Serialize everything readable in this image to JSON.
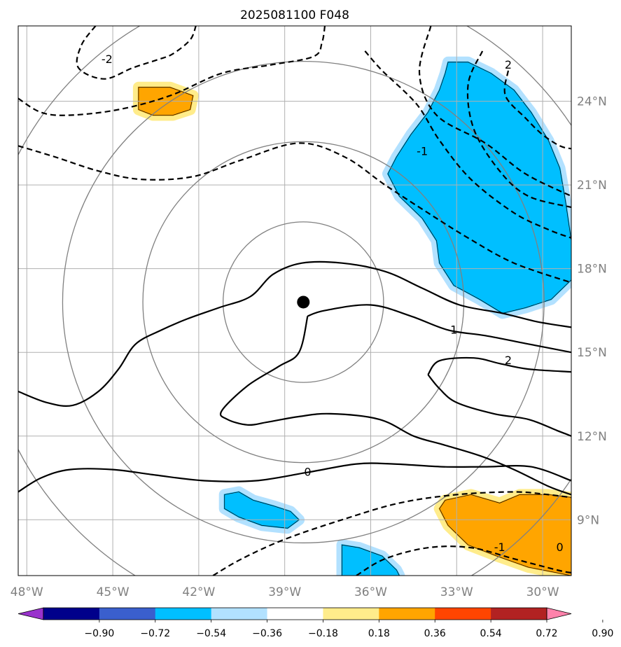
{
  "chart_data": {
    "type": "map-contour",
    "title": "2025081100 F048",
    "projection": "lat-lon",
    "xlim": [
      -48.3,
      -29.0
    ],
    "ylim": [
      7.0,
      26.7
    ],
    "x_ticks": [
      {
        "value": -48,
        "label": "48°W"
      },
      {
        "value": -45,
        "label": "45°W"
      },
      {
        "value": -42,
        "label": "42°W"
      },
      {
        "value": -39,
        "label": "39°W"
      },
      {
        "value": -36,
        "label": "36°W"
      },
      {
        "value": -33,
        "label": "33°W"
      },
      {
        "value": -30,
        "label": "30°W"
      }
    ],
    "y_ticks": [
      {
        "value": 9,
        "label": "9°N"
      },
      {
        "value": 12,
        "label": "12°N"
      },
      {
        "value": 15,
        "label": "15°N"
      },
      {
        "value": 18,
        "label": "18°N"
      },
      {
        "value": 21,
        "label": "21°N"
      },
      {
        "value": 24,
        "label": "24°N"
      }
    ],
    "grid": true,
    "center_marker": {
      "lon": -38.35,
      "lat": 16.8
    },
    "range_rings_deg": [
      2.8,
      5.6,
      8.4,
      11.2
    ],
    "colorbar": {
      "orientation": "horizontal",
      "position": "bottom",
      "extend": "both",
      "bounds": [
        -0.9,
        -0.72,
        -0.54,
        -0.36,
        -0.18,
        0.18,
        0.36,
        0.54,
        0.72,
        0.9
      ],
      "tick_labels": [
        "−0.90",
        "−0.72",
        "−0.54",
        "−0.36",
        "−0.18",
        "0.18",
        "0.36",
        "0.54",
        "0.72",
        "0.90"
      ],
      "colors": [
        "#9932CC",
        "#00008B",
        "#3A5FCD",
        "#00BFFF",
        "#B2E1FF",
        "#FFFFFF",
        "#FFEC8B",
        "#FFA500",
        "#FF4500",
        "#B22222",
        "#FF82AB"
      ]
    },
    "contour_labels": [
      "-2",
      "2",
      "-1",
      "1",
      "2",
      "0",
      "-1",
      "0"
    ],
    "colors": {
      "neg_light": "#B2E1FF",
      "neg_mid": "#00BFFF",
      "pos_light": "#FFEC8B",
      "pos_mid": "#FFA500",
      "contour": "#000000",
      "grid": "#B0B0B0",
      "rings": "#808080"
    },
    "fill_regions": [
      {
        "level": "neg_mid",
        "polygon": [
          [
            -33.3,
            25.4
          ],
          [
            -32.6,
            25.4
          ],
          [
            -31.8,
            25.0
          ],
          [
            -31.0,
            24.4
          ],
          [
            -30.4,
            23.6
          ],
          [
            -29.8,
            22.6
          ],
          [
            -29.4,
            21.6
          ],
          [
            -29.2,
            20.4
          ],
          [
            -29.0,
            19.0
          ],
          [
            -29.0,
            17.6
          ],
          [
            -29.7,
            16.9
          ],
          [
            -30.6,
            16.6
          ],
          [
            -31.4,
            16.4
          ],
          [
            -32.2,
            16.9
          ],
          [
            -33.1,
            17.4
          ],
          [
            -33.6,
            18.2
          ],
          [
            -33.7,
            19.0
          ],
          [
            -34.2,
            19.8
          ],
          [
            -35.0,
            20.6
          ],
          [
            -35.4,
            21.4
          ],
          [
            -35.1,
            22.0
          ],
          [
            -34.6,
            22.8
          ],
          [
            -34.0,
            23.6
          ],
          [
            -33.6,
            24.4
          ],
          [
            -33.4,
            25.0
          ]
        ]
      },
      {
        "level": "neg_mid",
        "polygon": [
          [
            -41.1,
            9.9
          ],
          [
            -40.6,
            10.0
          ],
          [
            -40.1,
            9.7
          ],
          [
            -39.4,
            9.5
          ],
          [
            -38.8,
            9.3
          ],
          [
            -38.5,
            9.0
          ],
          [
            -38.9,
            8.7
          ],
          [
            -39.8,
            8.8
          ],
          [
            -40.6,
            9.1
          ],
          [
            -41.1,
            9.4
          ]
        ]
      },
      {
        "level": "neg_mid",
        "polygon": [
          [
            -37.0,
            8.1
          ],
          [
            -36.4,
            8.0
          ],
          [
            -35.6,
            7.7
          ],
          [
            -35.1,
            7.2
          ],
          [
            -35.0,
            7.0
          ],
          [
            -37.0,
            7.0
          ]
        ]
      },
      {
        "level": "pos_mid",
        "polygon": [
          [
            -44.1,
            24.5
          ],
          [
            -43.0,
            24.5
          ],
          [
            -42.2,
            24.2
          ],
          [
            -42.3,
            23.7
          ],
          [
            -42.9,
            23.5
          ],
          [
            -43.6,
            23.5
          ],
          [
            -44.1,
            23.7
          ]
        ]
      },
      {
        "level": "pos_mid",
        "polygon": [
          [
            -33.4,
            9.7
          ],
          [
            -32.5,
            9.9
          ],
          [
            -31.5,
            9.6
          ],
          [
            -30.8,
            9.9
          ],
          [
            -29.8,
            9.9
          ],
          [
            -29.0,
            9.8
          ],
          [
            -29.0,
            7.0
          ],
          [
            -30.5,
            7.3
          ],
          [
            -31.6,
            7.7
          ],
          [
            -32.6,
            8.1
          ],
          [
            -33.3,
            8.8
          ],
          [
            -33.6,
            9.4
          ]
        ]
      }
    ],
    "contours": [
      {
        "label": "-2",
        "style": "dashed",
        "points": [
          [
            -45.6,
            26.7
          ],
          [
            -46.1,
            26.0
          ],
          [
            -46.2,
            25.2
          ],
          [
            -45.3,
            24.8
          ],
          [
            -44.3,
            25.2
          ],
          [
            -43.4,
            25.5
          ],
          [
            -42.9,
            25.7
          ],
          [
            -42.3,
            26.2
          ],
          [
            -42.1,
            26.7
          ]
        ]
      },
      {
        "label": "-2",
        "style": "dashed",
        "points": [
          [
            -48.3,
            24.1
          ],
          [
            -47.5,
            23.6
          ],
          [
            -46.5,
            23.5
          ],
          [
            -44.8,
            23.7
          ],
          [
            -43.0,
            24.2
          ],
          [
            -41.2,
            25.0
          ],
          [
            -39.5,
            25.3
          ],
          [
            -38.0,
            25.6
          ],
          [
            -37.7,
            26.1
          ],
          [
            -37.6,
            26.7
          ]
        ]
      },
      {
        "label": "-1",
        "style": "dashed",
        "points": [
          [
            -48.3,
            22.4
          ],
          [
            -47.0,
            22.0
          ],
          [
            -45.5,
            21.5
          ],
          [
            -44.0,
            21.2
          ],
          [
            -42.2,
            21.3
          ],
          [
            -40.5,
            21.9
          ],
          [
            -38.5,
            22.5
          ],
          [
            -36.9,
            22.0
          ],
          [
            -35.5,
            21.0
          ],
          [
            -34.0,
            20.0
          ],
          [
            -32.6,
            19.1
          ],
          [
            -31.0,
            18.2
          ],
          [
            -29.0,
            17.5
          ]
        ]
      },
      {
        "label": "-1",
        "style": "dashed",
        "points": [
          [
            -36.2,
            25.8
          ],
          [
            -35.6,
            25.1
          ],
          [
            -34.4,
            23.9
          ],
          [
            -33.6,
            22.6
          ],
          [
            -32.5,
            21.2
          ],
          [
            -31.0,
            20.0
          ],
          [
            -29.8,
            19.4
          ],
          [
            -29.0,
            19.1
          ]
        ]
      },
      {
        "label": "-2",
        "style": "dashed",
        "points": [
          [
            -32.1,
            25.8
          ],
          [
            -32.6,
            24.6
          ],
          [
            -32.4,
            23.0
          ],
          [
            -31.5,
            21.5
          ],
          [
            -30.5,
            20.6
          ],
          [
            -29.0,
            20.2
          ]
        ]
      },
      {
        "label": "-2",
        "style": "dashed",
        "points": [
          [
            -33.9,
            26.7
          ],
          [
            -34.3,
            25.0
          ],
          [
            -33.7,
            23.5
          ],
          [
            -32.0,
            22.5
          ],
          [
            -30.6,
            21.4
          ],
          [
            -29.0,
            20.6
          ]
        ]
      },
      {
        "label": "-2",
        "style": "dashed",
        "points": [
          [
            -31.2,
            25.1
          ],
          [
            -31.3,
            24.2
          ],
          [
            -30.6,
            23.4
          ],
          [
            -30.0,
            22.8
          ],
          [
            -29.4,
            22.4
          ],
          [
            -29.0,
            22.3
          ]
        ]
      },
      {
        "label": "-1",
        "style": "dashed",
        "points": [
          [
            -41.5,
            7.0
          ],
          [
            -40.5,
            7.6
          ],
          [
            -39.0,
            8.3
          ],
          [
            -37.0,
            9.0
          ],
          [
            -35.0,
            9.6
          ],
          [
            -33.0,
            9.9
          ],
          [
            -31.0,
            10.0
          ],
          [
            -29.8,
            9.9
          ],
          [
            -29.0,
            9.8
          ]
        ]
      },
      {
        "label": "0",
        "style": "dashed",
        "points": [
          [
            -36.5,
            7.0
          ],
          [
            -35.5,
            7.6
          ],
          [
            -34.0,
            8.0
          ],
          [
            -32.5,
            8.0
          ],
          [
            -31.0,
            7.6
          ],
          [
            -29.5,
            7.2
          ],
          [
            -29.0,
            7.1
          ]
        ]
      },
      {
        "label": "0",
        "style": "solid",
        "points": [
          [
            -48.3,
            13.6
          ],
          [
            -47.3,
            13.2
          ],
          [
            -46.4,
            13.1
          ],
          [
            -45.5,
            13.6
          ],
          [
            -44.8,
            14.4
          ],
          [
            -44.2,
            15.3
          ],
          [
            -43.3,
            15.8
          ],
          [
            -42.4,
            16.2
          ],
          [
            -41.3,
            16.6
          ],
          [
            -40.2,
            17.0
          ],
          [
            -39.4,
            17.8
          ],
          [
            -38.4,
            18.2
          ],
          [
            -37.0,
            18.2
          ],
          [
            -35.5,
            17.9
          ],
          [
            -34.2,
            17.3
          ],
          [
            -32.9,
            16.7
          ],
          [
            -31.4,
            16.4
          ],
          [
            -30.2,
            16.1
          ],
          [
            -29.0,
            15.9
          ]
        ]
      },
      {
        "label": "1",
        "style": "solid",
        "points": [
          [
            -38.2,
            16.3
          ],
          [
            -37.6,
            16.5
          ],
          [
            -36.0,
            16.7
          ],
          [
            -34.6,
            16.3
          ],
          [
            -33.3,
            15.8
          ],
          [
            -32.0,
            15.6
          ],
          [
            -30.5,
            15.3
          ],
          [
            -29.0,
            15.0
          ]
        ]
      },
      {
        "label": "1",
        "style": "solid",
        "points": [
          [
            -38.2,
            16.3
          ],
          [
            -38.5,
            15.0
          ],
          [
            -39.2,
            14.5
          ],
          [
            -40.3,
            13.8
          ],
          [
            -41.2,
            12.9
          ],
          [
            -41.0,
            12.6
          ],
          [
            -40.3,
            12.4
          ],
          [
            -39.6,
            12.5
          ],
          [
            -38.5,
            12.7
          ],
          [
            -37.4,
            12.8
          ],
          [
            -35.7,
            12.6
          ],
          [
            -34.5,
            12.0
          ],
          [
            -33.5,
            11.7
          ],
          [
            -32.2,
            11.3
          ],
          [
            -31.0,
            10.8
          ],
          [
            -29.8,
            10.2
          ],
          [
            -29.0,
            9.9
          ]
        ]
      },
      {
        "label": "2",
        "style": "solid",
        "points": [
          [
            -34.0,
            14.2
          ],
          [
            -33.6,
            13.7
          ],
          [
            -33.0,
            13.2
          ],
          [
            -31.7,
            12.8
          ],
          [
            -30.5,
            12.6
          ],
          [
            -29.5,
            12.2
          ],
          [
            -29.0,
            12.0
          ]
        ]
      },
      {
        "label": "2",
        "style": "solid",
        "points": [
          [
            -34.0,
            14.2
          ],
          [
            -33.6,
            14.7
          ],
          [
            -32.4,
            14.8
          ],
          [
            -31.5,
            14.6
          ],
          [
            -30.5,
            14.4
          ],
          [
            -29.0,
            14.3
          ]
        ]
      },
      {
        "label": "0",
        "style": "solid",
        "points": [
          [
            -48.3,
            10.0
          ],
          [
            -47.5,
            10.5
          ],
          [
            -46.5,
            10.8
          ],
          [
            -45.0,
            10.8
          ],
          [
            -43.5,
            10.6
          ],
          [
            -41.8,
            10.4
          ],
          [
            -40.0,
            10.4
          ],
          [
            -38.2,
            10.7
          ],
          [
            -36.5,
            11.0
          ],
          [
            -35.2,
            11.0
          ],
          [
            -33.5,
            10.9
          ],
          [
            -32.0,
            10.9
          ],
          [
            -30.4,
            10.9
          ],
          [
            -29.0,
            10.4
          ]
        ]
      }
    ]
  }
}
